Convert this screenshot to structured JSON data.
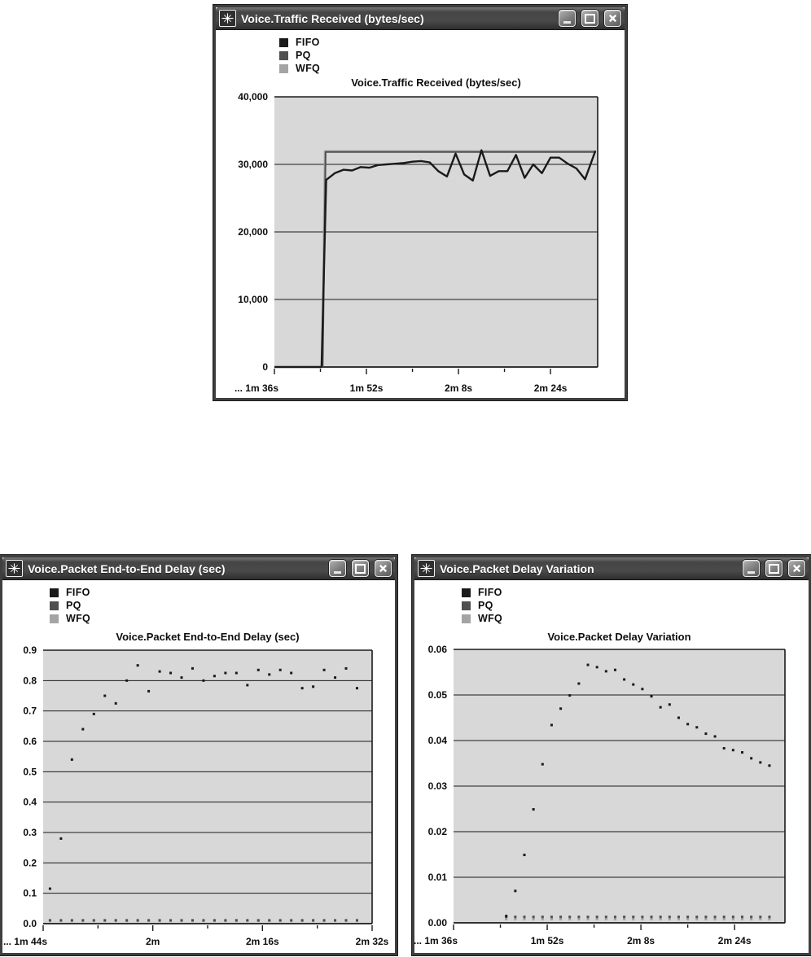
{
  "windows": [
    {
      "title": "Voice.Traffic Received (bytes/sec)"
    },
    {
      "title": "Voice.Packet End-to-End Delay (sec)"
    },
    {
      "title": "Voice.Packet Delay Variation"
    }
  ],
  "window_controls": {
    "minimize": "minimize",
    "maximize": "maximize",
    "close": "close"
  },
  "colors": {
    "fifo": "#1a1a1a",
    "pq": "#4f4f4f",
    "wfq": "#a4a4a4",
    "plot_bg": "#d8d8d8",
    "grid": "#1a1a1a",
    "titlebar": "#454545"
  },
  "chart_data": [
    {
      "type": "line",
      "title": "Voice.Traffic Received (bytes/sec)",
      "xlabel": "",
      "ylabel": "",
      "grid": true,
      "legend_position": "top-left",
      "plot_bg": "#d8d8d8",
      "xlim": [
        96,
        152.2
      ],
      "ylim": [
        0,
        40000
      ],
      "x_ticks": [
        {
          "t": 96,
          "label": "... 1m 36s"
        },
        {
          "t": 104
        },
        {
          "t": 112,
          "label": "1m 52s"
        },
        {
          "t": 120
        },
        {
          "t": 128,
          "label": "2m 8s"
        },
        {
          "t": 136
        },
        {
          "t": 144,
          "label": "2m 24s"
        }
      ],
      "y_ticks": [
        {
          "v": 0,
          "label": "0"
        },
        {
          "v": 10000,
          "label": "10,000"
        },
        {
          "v": 20000,
          "label": "20,000"
        },
        {
          "v": 30000,
          "label": "30,000"
        },
        {
          "v": 40000,
          "label": "40,000"
        }
      ],
      "series": [
        {
          "name": "FIFO",
          "color": "#1a1a1a",
          "width": 2.4,
          "points": [
            [
              96,
              0
            ],
            [
              104.2,
              0
            ],
            [
              105,
              27700
            ],
            [
              106.5,
              28700
            ],
            [
              108,
              29200
            ],
            [
              109.5,
              29100
            ],
            [
              111,
              29600
            ],
            [
              112.5,
              29500
            ],
            [
              114,
              29900
            ],
            [
              115.5,
              30000
            ],
            [
              117,
              30100
            ],
            [
              118.5,
              30200
            ],
            [
              120,
              30400
            ],
            [
              121.5,
              30500
            ],
            [
              123,
              30300
            ],
            [
              124.5,
              29000
            ],
            [
              126,
              28200
            ],
            [
              127.5,
              31600
            ],
            [
              129,
              28500
            ],
            [
              130.5,
              27600
            ],
            [
              132,
              32100
            ],
            [
              133.5,
              28300
            ],
            [
              135,
              29000
            ],
            [
              136.5,
              29000
            ],
            [
              138,
              31400
            ],
            [
              139.5,
              28000
            ],
            [
              141,
              30000
            ],
            [
              142.5,
              28700
            ],
            [
              144,
              31000
            ],
            [
              145.5,
              31000
            ],
            [
              147,
              30100
            ],
            [
              148.5,
              29400
            ],
            [
              150,
              27800
            ],
            [
              151.8,
              32000
            ]
          ]
        },
        {
          "name": "PQ",
          "color": "#4f4f4f",
          "width": 2,
          "points": [
            [
              96,
              0
            ],
            [
              104.4,
              0
            ],
            [
              104.9,
              31830
            ],
            [
              151.9,
              31830
            ]
          ]
        },
        {
          "name": "WFQ",
          "color": "#a4a4a4",
          "width": 2,
          "points": [
            [
              96,
              0
            ],
            [
              104.3,
              0
            ],
            [
              104.75,
              31980
            ],
            [
              151.9,
              31980
            ]
          ]
        }
      ]
    },
    {
      "type": "scatter",
      "title": "Voice.Packet End-to-End Delay (sec)",
      "xlabel": "",
      "ylabel": "",
      "grid": true,
      "legend_position": "top-left",
      "plot_bg": "#d8d8d8",
      "xlim": [
        104,
        152
      ],
      "ylim": [
        0,
        0.9
      ],
      "x_ticks": [
        {
          "t": 104,
          "label": "... 1m 44s"
        },
        {
          "t": 112
        },
        {
          "t": 120,
          "label": "2m"
        },
        {
          "t": 128
        },
        {
          "t": 136,
          "label": "2m 16s"
        },
        {
          "t": 144
        },
        {
          "t": 152,
          "label": "2m 32s"
        }
      ],
      "y_ticks": [
        {
          "v": 0.0,
          "label": "0.0"
        },
        {
          "v": 0.1,
          "label": "0.1"
        },
        {
          "v": 0.2,
          "label": "0.2"
        },
        {
          "v": 0.3,
          "label": "0.3"
        },
        {
          "v": 0.4,
          "label": "0.4"
        },
        {
          "v": 0.5,
          "label": "0.5"
        },
        {
          "v": 0.6,
          "label": "0.6"
        },
        {
          "v": 0.7,
          "label": "0.7"
        },
        {
          "v": 0.8,
          "label": "0.8"
        },
        {
          "v": 0.9,
          "label": "0.9"
        }
      ],
      "series": [
        {
          "name": "FIFO",
          "color": "#1a1a1a",
          "x": [
            105,
            106.6,
            108.2,
            109.8,
            111.4,
            113,
            114.6,
            116.2,
            117.8,
            119.4,
            121,
            122.6,
            124.2,
            125.8,
            127.4,
            129,
            130.6,
            132.2,
            133.8,
            135.4,
            137,
            138.6,
            140.2,
            141.8,
            143.4,
            145,
            146.6,
            148.2,
            149.8
          ],
          "values": [
            0.115,
            0.28,
            0.54,
            0.64,
            0.69,
            0.75,
            0.725,
            0.8,
            0.85,
            0.765,
            0.83,
            0.825,
            0.81,
            0.84,
            0.8,
            0.815,
            0.825,
            0.825,
            0.785,
            0.835,
            0.82,
            0.835,
            0.825,
            0.775,
            0.78,
            0.835,
            0.81,
            0.84,
            0.775
          ]
        },
        {
          "name": "PQ",
          "color": "#4f4f4f",
          "x": [
            105,
            106.6,
            108.2,
            109.8,
            111.4,
            113,
            114.6,
            116.2,
            117.8,
            119.4,
            121,
            122.6,
            124.2,
            125.8,
            127.4,
            129,
            130.6,
            132.2,
            133.8,
            135.4,
            137,
            138.6,
            140.2,
            141.8,
            143.4,
            145,
            146.6,
            148.2,
            149.8
          ],
          "value": 0.011
        },
        {
          "name": "WFQ",
          "color": "#a4a4a4",
          "x": [
            105,
            106.6,
            108.2,
            109.8,
            111.4,
            113,
            114.6,
            116.2,
            117.8,
            119.4,
            121,
            122.6,
            124.2,
            125.8,
            127.4,
            129,
            130.6,
            132.2,
            133.8,
            135.4,
            137,
            138.6,
            140.2,
            141.8,
            143.4,
            145,
            146.6,
            148.2,
            149.8
          ],
          "value": 0.009
        }
      ]
    },
    {
      "type": "scatter",
      "title": "Voice.Packet Delay Variation",
      "xlabel": "",
      "ylabel": "",
      "grid": true,
      "legend_position": "top-left",
      "plot_bg": "#d8d8d8",
      "xlim": [
        96,
        152.6
      ],
      "ylim": [
        0,
        0.06
      ],
      "x_ticks": [
        {
          "t": 96,
          "label": "... 1m 36s"
        },
        {
          "t": 104
        },
        {
          "t": 112,
          "label": "1m 52s"
        },
        {
          "t": 120
        },
        {
          "t": 128,
          "label": "2m 8s"
        },
        {
          "t": 136
        },
        {
          "t": 144,
          "label": "2m 24s"
        }
      ],
      "y_ticks": [
        {
          "v": 0.0,
          "label": "0.00"
        },
        {
          "v": 0.01,
          "label": "0.01"
        },
        {
          "v": 0.02,
          "label": "0.02"
        },
        {
          "v": 0.03,
          "label": "0.03"
        },
        {
          "v": 0.04,
          "label": "0.04"
        },
        {
          "v": 0.05,
          "label": "0.05"
        },
        {
          "v": 0.06,
          "label": "0.06"
        }
      ],
      "series": [
        {
          "name": "FIFO",
          "color": "#1a1a1a",
          "x": [
            105,
            106.55,
            108.1,
            109.65,
            111.2,
            112.75,
            114.3,
            115.85,
            117.4,
            118.95,
            120.5,
            122.05,
            123.6,
            125.15,
            126.7,
            128.25,
            129.8,
            131.35,
            132.9,
            134.45,
            136,
            137.55,
            139.1,
            140.65,
            142.2,
            143.75,
            145.3,
            146.85,
            148.4,
            149.95
          ],
          "values": [
            0.0015,
            0.007,
            0.0149,
            0.0249,
            0.0348,
            0.0434,
            0.047,
            0.0499,
            0.0525,
            0.0566,
            0.0561,
            0.0552,
            0.0555,
            0.0534,
            0.0523,
            0.0513,
            0.0497,
            0.0473,
            0.0479,
            0.045,
            0.0436,
            0.0429,
            0.0415,
            0.0409,
            0.0383,
            0.0379,
            0.0374,
            0.0361,
            0.0352,
            0.0345
          ]
        },
        {
          "name": "PQ",
          "color": "#4f4f4f",
          "x": [
            105,
            106.55,
            108.1,
            109.65,
            111.2,
            112.75,
            114.3,
            115.85,
            117.4,
            118.95,
            120.5,
            122.05,
            123.6,
            125.15,
            126.7,
            128.25,
            129.8,
            131.35,
            132.9,
            134.45,
            136,
            137.55,
            139.1,
            140.65,
            142.2,
            143.75,
            145.3,
            146.85,
            148.4,
            149.95
          ],
          "value": 0.0013
        },
        {
          "name": "WFQ",
          "color": "#a4a4a4",
          "x": [
            105,
            106.55,
            108.1,
            109.65,
            111.2,
            112.75,
            114.3,
            115.85,
            117.4,
            118.95,
            120.5,
            122.05,
            123.6,
            125.15,
            126.7,
            128.25,
            129.8,
            131.35,
            132.9,
            134.45,
            136,
            137.55,
            139.1,
            140.65,
            142.2,
            143.75,
            145.3,
            146.85,
            148.4,
            149.95
          ],
          "value": 0.0008
        }
      ]
    }
  ]
}
